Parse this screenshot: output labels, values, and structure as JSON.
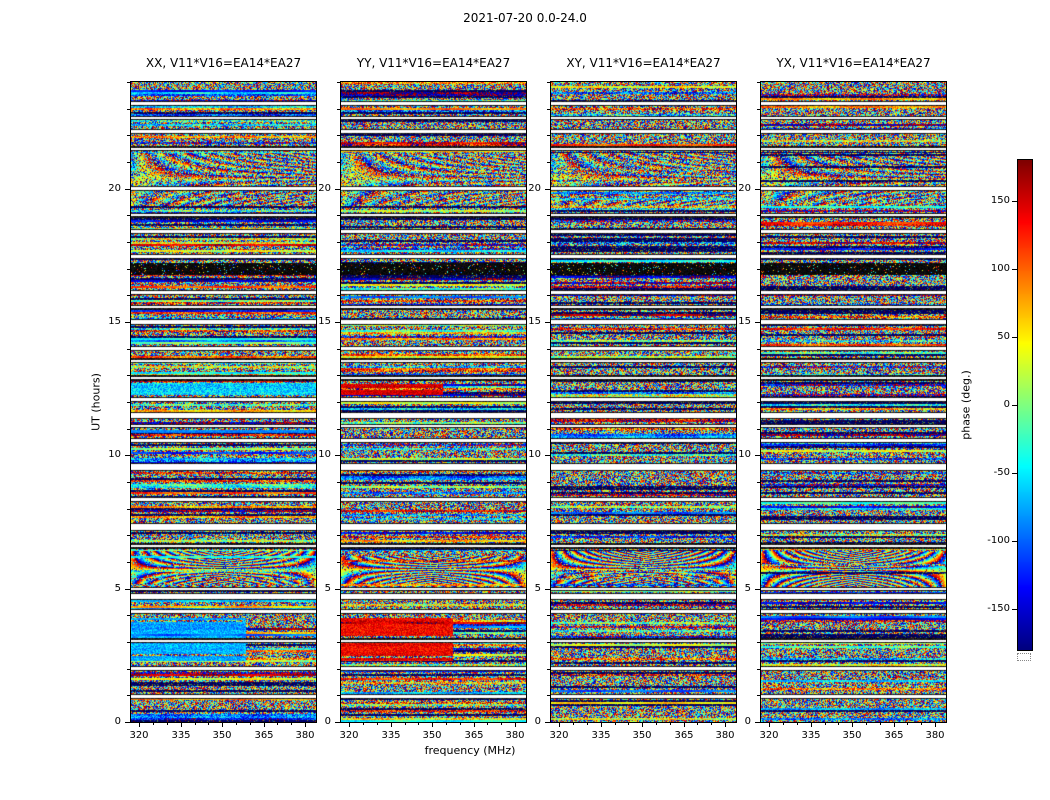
{
  "chart_data": {
    "type": "heatmap",
    "suptitle": "2021-07-20 0.0-24.0",
    "xlabel": "frequency (MHz)",
    "ylabel": "UT (hours)",
    "x_range": [
      317,
      384
    ],
    "y_range": [
      0,
      24
    ],
    "x_ticks": [
      320,
      335,
      350,
      365,
      380
    ],
    "x_tick_labels": [
      "320",
      "335",
      "350",
      "365",
      "380"
    ],
    "x_minor_step": 5,
    "y_ticks": [
      0,
      5,
      10,
      15,
      20
    ],
    "y_tick_labels": [
      "0",
      "5",
      "10",
      "15",
      "20"
    ],
    "y_minor_step": 1,
    "colors": {
      "background": "#ffffff",
      "frame": "#000000",
      "gap": "#ffffff"
    },
    "colorbar": {
      "label": "phase (deg.)",
      "colormap": "jet",
      "range": [
        -180,
        180
      ],
      "ticks": [
        150,
        100,
        50,
        0,
        -50,
        -100,
        -150
      ],
      "tick_labels": [
        "150",
        "100",
        "50",
        "0",
        "-50",
        "-100",
        "-150"
      ]
    },
    "panels": [
      {
        "key": "xx",
        "title": "XX, V11*V16=EA14*EA27",
        "seed": 101,
        "coherence": 0.36
      },
      {
        "key": "yy",
        "title": "YY, V11*V16=EA14*EA27",
        "seed": 202,
        "coherence": 0.36
      },
      {
        "key": "xy",
        "title": "XY, V11*V16=EA14*EA27",
        "seed": 303,
        "coherence": 0.24
      },
      {
        "key": "yx",
        "title": "YX, V11*V16=EA14*EA27",
        "seed": 404,
        "coherence": 0.24
      }
    ],
    "time_gaps_hours": [
      [
        0.95,
        0.05
      ],
      [
        2.0,
        0.05
      ],
      [
        3.05,
        0.04
      ],
      [
        4.15,
        0.05
      ],
      [
        4.7,
        0.09
      ],
      [
        5.0,
        0.035
      ],
      [
        6.6,
        0.05
      ],
      [
        7.3,
        0.11
      ],
      [
        8.35,
        0.05
      ],
      [
        9.55,
        0.11
      ],
      [
        10.55,
        0.05
      ],
      [
        11.1,
        0.04
      ],
      [
        11.5,
        0.09
      ],
      [
        12.1,
        0.05
      ],
      [
        12.9,
        0.05
      ],
      [
        13.55,
        0.04
      ],
      [
        14.0,
        0.05
      ],
      [
        15.0,
        0.06
      ],
      [
        15.55,
        0.04
      ],
      [
        16.1,
        0.05
      ],
      [
        17.45,
        0.06
      ],
      [
        18.4,
        0.05
      ],
      [
        19.0,
        0.04
      ],
      [
        20.0,
        0.05
      ],
      [
        21.5,
        0.04
      ],
      [
        22.15,
        0.05
      ],
      [
        22.65,
        0.04
      ],
      [
        23.2,
        0.05
      ]
    ],
    "black_bands_hours": [
      [
        16.75,
        17.2
      ]
    ],
    "fringe_bands": [
      {
        "t0": 5.05,
        "t1": 6.4,
        "k": 26,
        "mix": 0.8
      },
      {
        "t0": 19.35,
        "t1": 21.35,
        "k": 9,
        "mix": 0.45
      }
    ],
    "features": [
      {
        "panel": 0,
        "t0": 2.3,
        "t1": 3.9,
        "x0": 0,
        "x1": 0.62,
        "phase_deg": -75,
        "jitter": 55
      },
      {
        "panel": 0,
        "t0": 10.85,
        "t1": 11.05,
        "x0": 0,
        "x1": 1,
        "phase_deg": -90,
        "jitter": 30
      },
      {
        "panel": 0,
        "t0": 12.25,
        "t1": 12.7,
        "x0": 0,
        "x1": 1,
        "phase_deg": -60,
        "jitter": 80
      },
      {
        "panel": 1,
        "t0": 2.3,
        "t1": 3.9,
        "x0": 0,
        "x1": 0.6,
        "phase_deg": 140,
        "jitter": 55
      },
      {
        "panel": 1,
        "t0": 12.25,
        "t1": 12.7,
        "x0": 0,
        "x1": 0.55,
        "phase_deg": 155,
        "jitter": 45
      },
      {
        "panel": 1,
        "t0": 12.25,
        "t1": 12.7,
        "x0": 0.55,
        "x1": 0.8,
        "phase_deg": -120,
        "jitter": 45
      }
    ],
    "data_summary": "Four waterfall panels (XX, YY, XY, YX correlations of baseline V11*V16=EA14*EA27) of interferometric visibility phase vs frequency (320-380 MHz) and UT time (0-24 h). Pixels are pseudo-random phase speckle colored with the jet colormap; horizontal white rows are scan gaps; a solid black band spans ~16.8-17.2 h; coherent-phase patches (cyan in XX, red in YY) appear near 2.3-3.9 h and 12.3-12.7 h; frequency fringe arcs appear near 5-6.4 h and 19.4-21.3 h."
  }
}
